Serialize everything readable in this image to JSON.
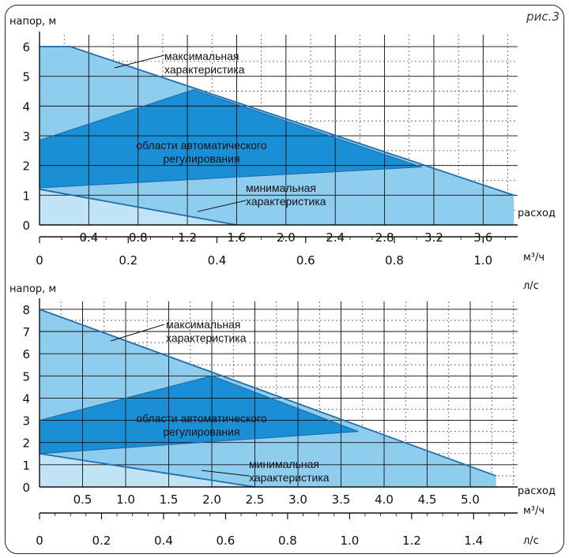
{
  "figure_label": "рис.3",
  "chart_data": [
    {
      "type": "area",
      "ylabel": "напор, м",
      "xlabel": "расход",
      "x_units": [
        "м³/ч",
        "л/с"
      ],
      "x_m3h_ticks": [
        "0.4",
        "0.8",
        "1.2",
        "1.6",
        "2.0",
        "2.4",
        "2.8",
        "3.2",
        "3.6"
      ],
      "x_ls_ticks": [
        "0",
        "0.2",
        "0.4",
        "0.6",
        "0.8",
        "1.0"
      ],
      "y_ticks": [
        "0",
        "1",
        "2",
        "3",
        "4",
        "5",
        "6"
      ],
      "xlim_m3h": [
        0,
        3.88
      ],
      "ylim": [
        0,
        6.4
      ],
      "ls_per_m3h": 0.2778,
      "grid": true,
      "max_curve": {
        "label": "максимальная характеристика",
        "x": [
          0,
          0.25,
          3.85
        ],
        "y": [
          6,
          6,
          1.0
        ]
      },
      "min_curve": {
        "label": "минимальная характеристика",
        "x": [
          0,
          1.6
        ],
        "y": [
          1.2,
          0
        ]
      },
      "auto_region": {
        "label": "области автоматического регулирования",
        "x": [
          0,
          1.25,
          3.1,
          0
        ],
        "y": [
          2.85,
          4.55,
          1.95,
          1.25
        ]
      }
    },
    {
      "type": "area",
      "ylabel": "напор, м",
      "xlabel": "расход",
      "x_units": [
        "м³/ч",
        "л/с"
      ],
      "x_m3h_ticks": [
        "0.5",
        "1.0",
        "1.5",
        "2.0",
        "2.5",
        "3.0",
        "3.5",
        "4.0",
        "4.5",
        "5.0"
      ],
      "x_ls_ticks": [
        "0",
        "0.2",
        "0.4",
        "0.6",
        "0.8",
        "1.0",
        "1.2",
        "1.4"
      ],
      "y_ticks": [
        "0",
        "1",
        "2",
        "3",
        "4",
        "5",
        "6",
        "7",
        "8"
      ],
      "xlim_m3h": [
        0,
        5.55
      ],
      "ylim": [
        0,
        8.35
      ],
      "ls_per_m3h": 0.2778,
      "grid": true,
      "max_curve": {
        "label": "максимальная характеристика",
        "x": [
          0,
          5.3
        ],
        "y": [
          8,
          0.5
        ]
      },
      "min_curve": {
        "label": "минимальная характеристика",
        "x": [
          0,
          2.5
        ],
        "y": [
          1.5,
          0
        ]
      },
      "auto_region": {
        "label": "области автоматического регулирования",
        "x": [
          0,
          2.0,
          3.7,
          0
        ],
        "y": [
          3.0,
          5.0,
          2.5,
          1.5
        ]
      }
    }
  ],
  "colors": {
    "light": "#8fcdef",
    "dark": "#1b8fd6",
    "edge": "#1f6fae"
  }
}
